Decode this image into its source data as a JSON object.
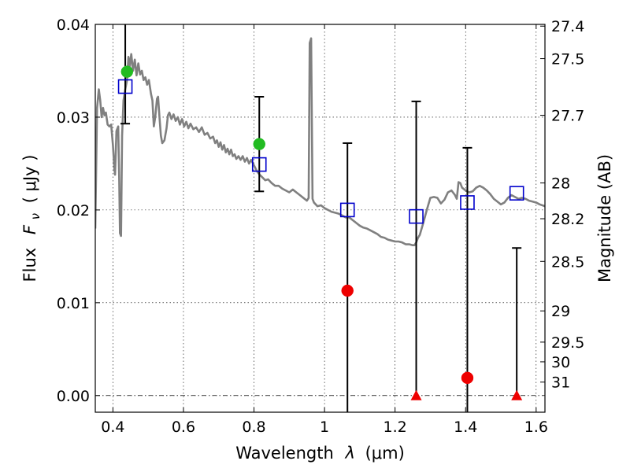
{
  "chart_data": {
    "type": "scatter",
    "title": "",
    "xlabel_prefix": "Wavelength",
    "xlabel_symbol": "λ",
    "xlabel_unit": "(μm)",
    "ylabel_prefix": "Flux",
    "ylabel_symbol": "F",
    "ylabel_subscript": "ν",
    "ylabel_unit": "( μJy )",
    "ylabel_right": "Magnitude (AB)",
    "xlim": [
      0.35,
      1.625
    ],
    "ylim": [
      -0.0018,
      0.04
    ],
    "grid": true,
    "x_ticks": [
      {
        "value": 0.4,
        "label": "0.4"
      },
      {
        "value": 0.6,
        "label": "0.6"
      },
      {
        "value": 0.8,
        "label": "0.8"
      },
      {
        "value": 1.0,
        "label": "1"
      },
      {
        "value": 1.2,
        "label": "1.2"
      },
      {
        "value": 1.4,
        "label": "1.4"
      },
      {
        "value": 1.6,
        "label": "1.6"
      }
    ],
    "y_ticks": [
      {
        "value": 0.0,
        "label": "0.00"
      },
      {
        "value": 0.01,
        "label": "0.01"
      },
      {
        "value": 0.02,
        "label": "0.02"
      },
      {
        "value": 0.03,
        "label": "0.03"
      },
      {
        "value": 0.04,
        "label": "0.04"
      }
    ],
    "right_ticks": [
      {
        "value": 27.4,
        "label": "27.4"
      },
      {
        "value": 27.5,
        "label": "27.5"
      },
      {
        "value": 27.7,
        "label": "27.7"
      },
      {
        "value": 28,
        "label": "28"
      },
      {
        "value": 28.2,
        "label": "28.2"
      },
      {
        "value": 28.5,
        "label": "28.5"
      },
      {
        "value": 29,
        "label": "29"
      },
      {
        "value": 29.5,
        "label": "29.5"
      },
      {
        "value": 30,
        "label": "30"
      },
      {
        "value": 31,
        "label": "31"
      }
    ],
    "series": [
      {
        "kind": "line",
        "color": "#808080",
        "points": [
          [
            0.35,
            0.018
          ],
          [
            0.355,
            0.031
          ],
          [
            0.36,
            0.033
          ],
          [
            0.364,
            0.0318
          ],
          [
            0.368,
            0.03
          ],
          [
            0.372,
            0.031
          ],
          [
            0.376,
            0.0302
          ],
          [
            0.38,
            0.0305
          ],
          [
            0.385,
            0.0292
          ],
          [
            0.39,
            0.029
          ],
          [
            0.395,
            0.0292
          ],
          [
            0.4,
            0.027
          ],
          [
            0.404,
            0.0245
          ],
          [
            0.406,
            0.0238
          ],
          [
            0.41,
            0.0285
          ],
          [
            0.415,
            0.029
          ],
          [
            0.418,
            0.023
          ],
          [
            0.42,
            0.0175
          ],
          [
            0.423,
            0.0172
          ],
          [
            0.426,
            0.028
          ],
          [
            0.43,
            0.0318
          ],
          [
            0.435,
            0.033
          ],
          [
            0.44,
            0.034
          ],
          [
            0.444,
            0.0365
          ],
          [
            0.448,
            0.0355
          ],
          [
            0.452,
            0.0368
          ],
          [
            0.457,
            0.035
          ],
          [
            0.462,
            0.0362
          ],
          [
            0.467,
            0.0345
          ],
          [
            0.472,
            0.0358
          ],
          [
            0.477,
            0.0346
          ],
          [
            0.482,
            0.035
          ],
          [
            0.487,
            0.034
          ],
          [
            0.492,
            0.0343
          ],
          [
            0.497,
            0.0335
          ],
          [
            0.502,
            0.034
          ],
          [
            0.508,
            0.0325
          ],
          [
            0.512,
            0.0318
          ],
          [
            0.516,
            0.029
          ],
          [
            0.52,
            0.03
          ],
          [
            0.525,
            0.032
          ],
          [
            0.528,
            0.0322
          ],
          [
            0.532,
            0.03
          ],
          [
            0.536,
            0.028
          ],
          [
            0.54,
            0.0272
          ],
          [
            0.546,
            0.0275
          ],
          [
            0.552,
            0.0288
          ],
          [
            0.556,
            0.0302
          ],
          [
            0.56,
            0.0305
          ],
          [
            0.566,
            0.0298
          ],
          [
            0.572,
            0.0303
          ],
          [
            0.578,
            0.0296
          ],
          [
            0.584,
            0.03
          ],
          [
            0.59,
            0.0292
          ],
          [
            0.596,
            0.0298
          ],
          [
            0.602,
            0.029
          ],
          [
            0.608,
            0.0295
          ],
          [
            0.614,
            0.0288
          ],
          [
            0.62,
            0.0293
          ],
          [
            0.628,
            0.0287
          ],
          [
            0.636,
            0.0289
          ],
          [
            0.644,
            0.0284
          ],
          [
            0.652,
            0.0289
          ],
          [
            0.66,
            0.0281
          ],
          [
            0.668,
            0.0283
          ],
          [
            0.676,
            0.0277
          ],
          [
            0.684,
            0.0279
          ],
          [
            0.69,
            0.0272
          ],
          [
            0.695,
            0.0275
          ],
          [
            0.7,
            0.0268
          ],
          [
            0.705,
            0.0273
          ],
          [
            0.71,
            0.0265
          ],
          [
            0.715,
            0.027
          ],
          [
            0.72,
            0.0262
          ],
          [
            0.725,
            0.0266
          ],
          [
            0.73,
            0.026
          ],
          [
            0.735,
            0.0265
          ],
          [
            0.74,
            0.0258
          ],
          [
            0.745,
            0.026
          ],
          [
            0.75,
            0.0255
          ],
          [
            0.756,
            0.0258
          ],
          [
            0.762,
            0.0254
          ],
          [
            0.768,
            0.0258
          ],
          [
            0.774,
            0.0252
          ],
          [
            0.78,
            0.0256
          ],
          [
            0.786,
            0.025
          ],
          [
            0.792,
            0.0254
          ],
          [
            0.8,
            0.0248
          ],
          [
            0.808,
            0.0242
          ],
          [
            0.816,
            0.0238
          ],
          [
            0.824,
            0.0235
          ],
          [
            0.832,
            0.0232
          ],
          [
            0.84,
            0.0233
          ],
          [
            0.85,
            0.0229
          ],
          [
            0.86,
            0.0226
          ],
          [
            0.87,
            0.0226
          ],
          [
            0.88,
            0.0223
          ],
          [
            0.89,
            0.0221
          ],
          [
            0.9,
            0.0219
          ],
          [
            0.91,
            0.0222
          ],
          [
            0.92,
            0.0219
          ],
          [
            0.93,
            0.0216
          ],
          [
            0.94,
            0.0213
          ],
          [
            0.95,
            0.021
          ],
          [
            0.955,
            0.0213
          ],
          [
            0.958,
            0.038
          ],
          [
            0.962,
            0.0385
          ],
          [
            0.966,
            0.0212
          ],
          [
            0.97,
            0.0208
          ],
          [
            0.98,
            0.0204
          ],
          [
            0.99,
            0.0205
          ],
          [
            1.0,
            0.0202
          ],
          [
            1.01,
            0.02
          ],
          [
            1.02,
            0.0198
          ],
          [
            1.03,
            0.0197
          ],
          [
            1.04,
            0.0196
          ],
          [
            1.05,
            0.0194
          ],
          [
            1.06,
            0.0192
          ],
          [
            1.07,
            0.0192
          ],
          [
            1.08,
            0.0189
          ],
          [
            1.09,
            0.0186
          ],
          [
            1.1,
            0.0183
          ],
          [
            1.11,
            0.0181
          ],
          [
            1.12,
            0.018
          ],
          [
            1.13,
            0.0178
          ],
          [
            1.14,
            0.0176
          ],
          [
            1.15,
            0.0174
          ],
          [
            1.16,
            0.0171
          ],
          [
            1.17,
            0.017
          ],
          [
            1.18,
            0.0168
          ],
          [
            1.19,
            0.0167
          ],
          [
            1.2,
            0.0166
          ],
          [
            1.21,
            0.0166
          ],
          [
            1.22,
            0.0165
          ],
          [
            1.23,
            0.0163
          ],
          [
            1.24,
            0.0163
          ],
          [
            1.25,
            0.0162
          ],
          [
            1.255,
            0.0162
          ],
          [
            1.26,
            0.0165
          ],
          [
            1.265,
            0.017
          ],
          [
            1.27,
            0.0173
          ],
          [
            1.28,
            0.0186
          ],
          [
            1.29,
            0.02
          ],
          [
            1.3,
            0.0213
          ],
          [
            1.31,
            0.0214
          ],
          [
            1.32,
            0.0213
          ],
          [
            1.33,
            0.0207
          ],
          [
            1.34,
            0.0211
          ],
          [
            1.35,
            0.0219
          ],
          [
            1.36,
            0.0221
          ],
          [
            1.37,
            0.0216
          ],
          [
            1.375,
            0.0212
          ],
          [
            1.38,
            0.023
          ],
          [
            1.385,
            0.0229
          ],
          [
            1.39,
            0.0224
          ],
          [
            1.4,
            0.0221
          ],
          [
            1.41,
            0.0219
          ],
          [
            1.42,
            0.022
          ],
          [
            1.43,
            0.0224
          ],
          [
            1.44,
            0.0226
          ],
          [
            1.45,
            0.0224
          ],
          [
            1.46,
            0.0221
          ],
          [
            1.47,
            0.0217
          ],
          [
            1.48,
            0.0212
          ],
          [
            1.49,
            0.0209
          ],
          [
            1.5,
            0.0206
          ],
          [
            1.51,
            0.0208
          ],
          [
            1.52,
            0.0213
          ],
          [
            1.53,
            0.0216
          ],
          [
            1.54,
            0.0214
          ],
          [
            1.55,
            0.0212
          ],
          [
            1.56,
            0.0213
          ],
          [
            1.57,
            0.0212
          ],
          [
            1.58,
            0.021
          ],
          [
            1.59,
            0.0209
          ],
          [
            1.6,
            0.0208
          ],
          [
            1.61,
            0.0206
          ],
          [
            1.625,
            0.0204
          ]
        ]
      },
      {
        "kind": "errorbar",
        "color": "#000000",
        "points": [
          {
            "x": 0.435,
            "low": 0.0293,
            "high": 0.04,
            "cap_low": true,
            "cap_high": false
          },
          {
            "x": 0.815,
            "low": 0.022,
            "high": 0.0322,
            "cap_low": true,
            "cap_high": true
          },
          {
            "x": 1.065,
            "low": -0.0018,
            "high": 0.0272,
            "cap_low": false,
            "cap_high": true
          },
          {
            "x": 1.26,
            "low": 0.0,
            "high": 0.0317,
            "cap_low": false,
            "cap_high": true
          },
          {
            "x": 1.405,
            "low": -0.0018,
            "high": 0.0267,
            "cap_low": false,
            "cap_high": true
          },
          {
            "x": 1.545,
            "low": 0.0,
            "high": 0.0159,
            "cap_low": false,
            "cap_high": true
          }
        ]
      },
      {
        "kind": "open-square",
        "color": "#0000cc",
        "points": [
          [
            0.435,
            0.0333
          ],
          [
            0.815,
            0.0249
          ],
          [
            1.065,
            0.02
          ],
          [
            1.26,
            0.0193
          ],
          [
            1.405,
            0.0208
          ],
          [
            1.545,
            0.0218
          ]
        ]
      },
      {
        "kind": "circle",
        "color": "#22bb22",
        "points": [
          [
            0.44,
            0.0349
          ],
          [
            0.815,
            0.0271
          ]
        ]
      },
      {
        "kind": "circle",
        "color": "#ee0000",
        "points": [
          [
            1.065,
            0.0113
          ],
          [
            1.405,
            0.0019
          ]
        ]
      },
      {
        "kind": "triangle",
        "color": "#ee0000",
        "points": [
          [
            1.26,
            0.0
          ],
          [
            1.545,
            0.0
          ]
        ]
      }
    ]
  }
}
